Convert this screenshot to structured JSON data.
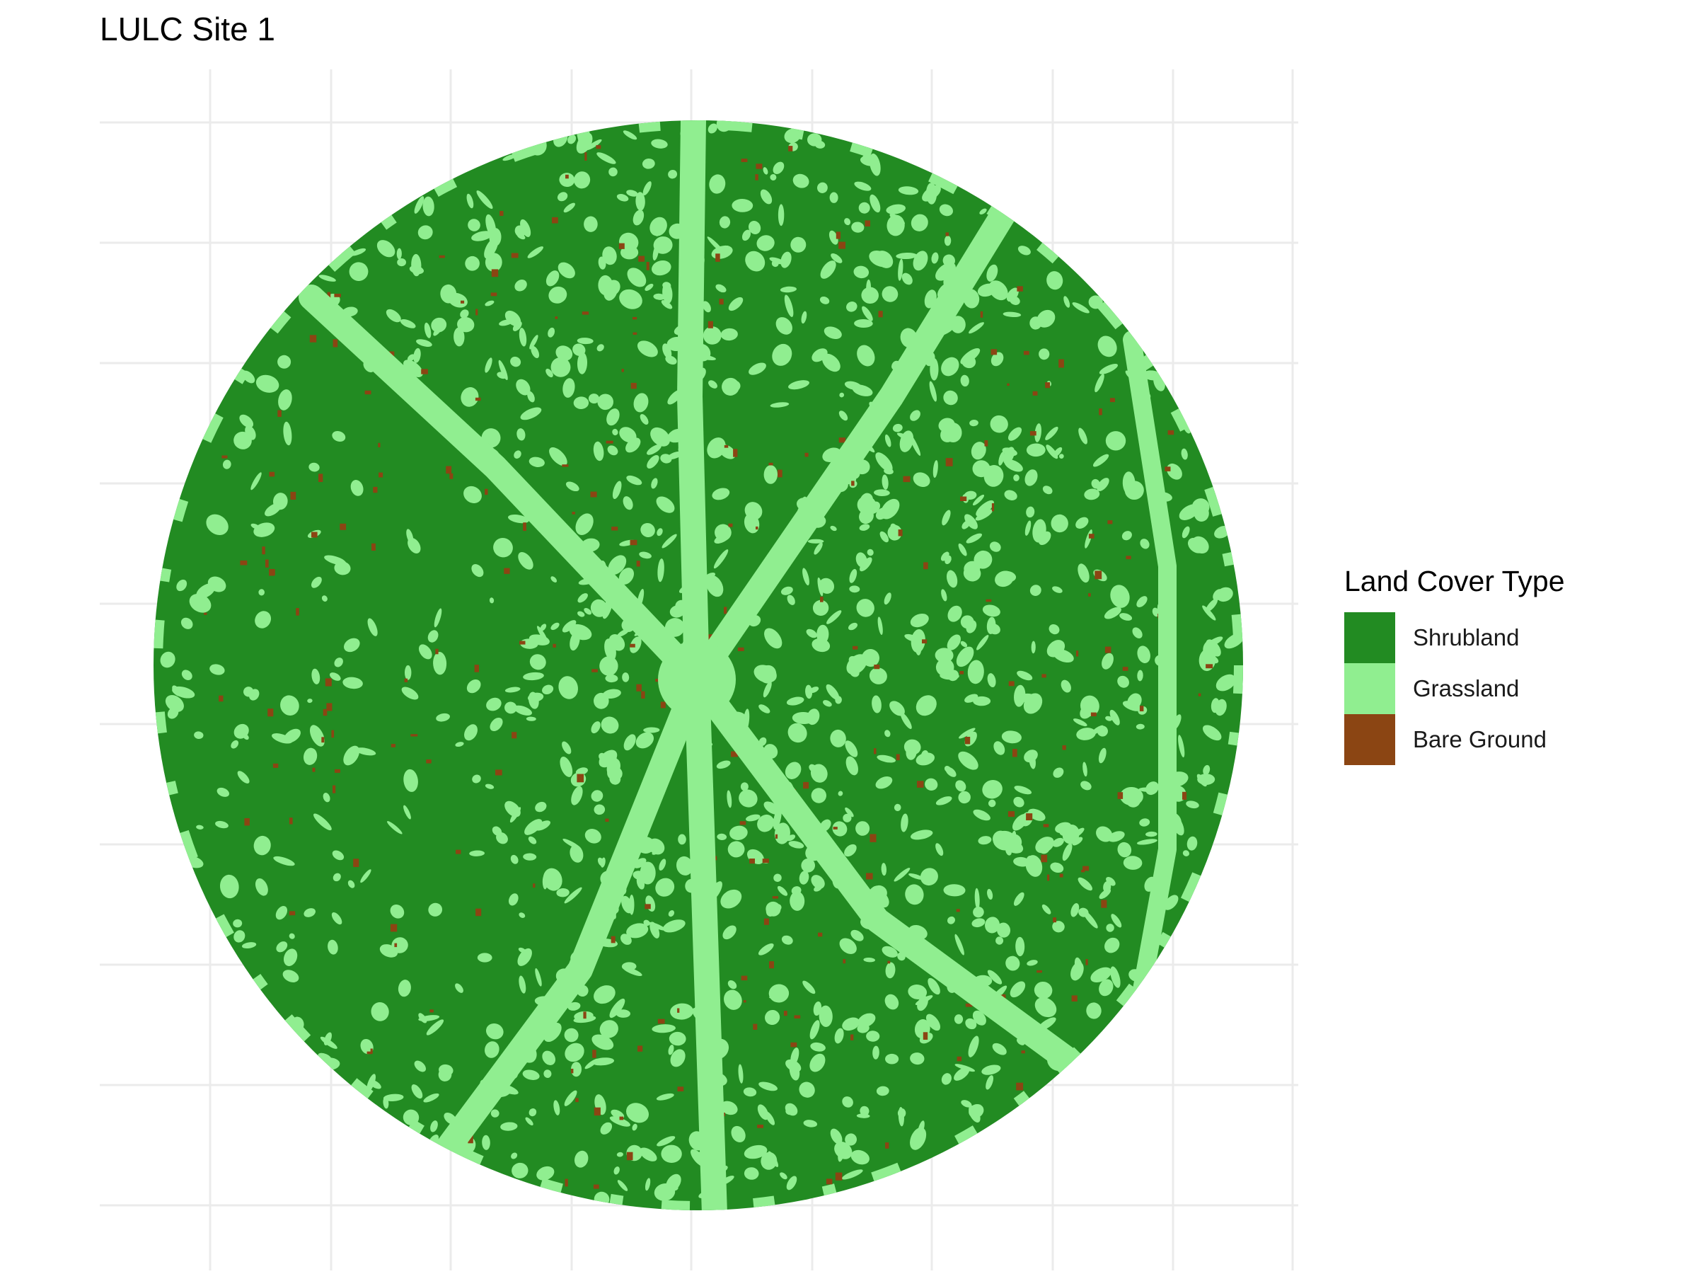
{
  "title": "LULC Site 1",
  "legend": {
    "title": "Land Cover Type",
    "items": [
      {
        "label": "Shrubland",
        "color": "#228B22"
      },
      {
        "label": "Grassland",
        "color": "#90EE90"
      },
      {
        "label": "Bare Ground",
        "color": "#8B4513"
      }
    ]
  },
  "map": {
    "type": "raster land-cover classification",
    "footprint": "circular",
    "grid": true,
    "background": "#ffffff",
    "grid_color": "#ebebeb",
    "legend_position": "right"
  }
}
